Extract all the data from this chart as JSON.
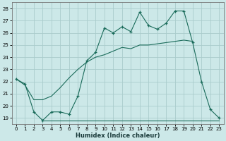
{
  "xlabel": "Humidex (Indice chaleur)",
  "xlim": [
    -0.5,
    23.5
  ],
  "ylim": [
    18.5,
    28.5
  ],
  "yticks": [
    19,
    20,
    21,
    22,
    23,
    24,
    25,
    26,
    27,
    28
  ],
  "xticks": [
    0,
    1,
    2,
    3,
    4,
    5,
    6,
    7,
    8,
    9,
    10,
    11,
    12,
    13,
    14,
    15,
    16,
    17,
    18,
    19,
    20,
    21,
    22,
    23
  ],
  "bg_color": "#cce8e8",
  "grid_color": "#aacccc",
  "line_color": "#1a6b5a",
  "line1_x": [
    0,
    1,
    2,
    3,
    4,
    5,
    6,
    7,
    8,
    9,
    10,
    11,
    12,
    13,
    14,
    15,
    16,
    17,
    18,
    19,
    20,
    21,
    22,
    23
  ],
  "line1_y": [
    22.2,
    21.8,
    19.5,
    18.8,
    19.5,
    19.5,
    19.3,
    20.8,
    23.7,
    24.4,
    26.4,
    26.0,
    26.5,
    26.1,
    27.7,
    26.6,
    26.3,
    26.8,
    27.8,
    27.8,
    25.2,
    22.0,
    19.7,
    19.0
  ],
  "line2_x": [
    3,
    23
  ],
  "line2_y": [
    18.8,
    18.8
  ],
  "line3_x": [
    0,
    1,
    2,
    3,
    4,
    5,
    6,
    7,
    8,
    9,
    10,
    11,
    12,
    13,
    14,
    15,
    16,
    17,
    18,
    19,
    20
  ],
  "line3_y": [
    22.2,
    21.7,
    20.5,
    20.5,
    20.8,
    21.5,
    22.3,
    23.0,
    23.6,
    24.0,
    24.2,
    24.5,
    24.8,
    24.7,
    25.0,
    25.0,
    25.1,
    25.2,
    25.3,
    25.4,
    25.3
  ]
}
